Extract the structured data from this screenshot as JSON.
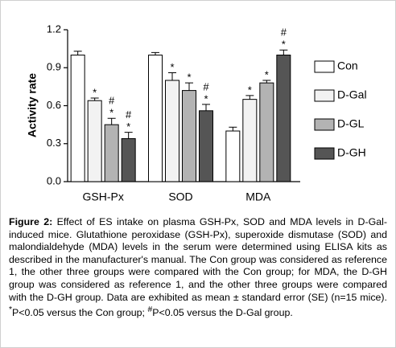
{
  "chart_data": {
    "type": "bar",
    "ylabel": "Activity rate",
    "categories": [
      "GSH-Px",
      "SOD",
      "MDA"
    ],
    "ylim": [
      0,
      1.2
    ],
    "yticks": [
      {
        "value": 0,
        "label": "0.0"
      },
      0.3,
      0.6,
      0.9,
      1.2
    ],
    "series": [
      {
        "name": "Con",
        "color": "#ffffff",
        "values": [
          1.0,
          1.0,
          0.4
        ],
        "errors": [
          0.03,
          0.02,
          0.03
        ],
        "stars": [
          null,
          null,
          null
        ],
        "hashes": [
          null,
          null,
          null
        ]
      },
      {
        "name": "D-Gal",
        "color": "#f2f2f2",
        "values": [
          0.64,
          0.8,
          0.65
        ],
        "errors": [
          0.02,
          0.06,
          0.03
        ],
        "stars": [
          "*",
          "*",
          "*"
        ],
        "hashes": [
          null,
          null,
          null
        ]
      },
      {
        "name": "D-GL",
        "color": "#b3b3b3",
        "values": [
          0.45,
          0.72,
          0.78
        ],
        "errors": [
          0.05,
          0.06,
          0.02
        ],
        "stars": [
          "*",
          "*",
          "*"
        ],
        "hashes": [
          "#",
          null,
          null
        ]
      },
      {
        "name": "D-GH",
        "color": "#555555",
        "values": [
          0.34,
          0.56,
          1.0
        ],
        "errors": [
          0.05,
          0.05,
          0.04
        ],
        "stars": [
          "*",
          "*",
          "*"
        ],
        "hashes": [
          "#",
          "#",
          "#"
        ]
      }
    ]
  },
  "caption": {
    "label": "Figure 2:",
    "text": " Effect of ES intake on plasma GSH-Px, SOD and MDA levels in D-Gal-induced mice. Glutathione peroxidase (GSH-Px), superoxide dismutase (SOD) and malondialdehyde (MDA) levels in the serum were determined using ELISA kits as described in the manufacturer's manual. The Con group was considered as reference 1, the other three groups were compared with the Con group; for MDA, the D-GH group was considered as reference 1, and the other three groups were compared with the D-GH group. Data are exhibited as mean ± standard error (SE) (n=15 mice). ",
    "sup1": "*",
    "text2": "P<0.05 versus the Con group; ",
    "sup2": "#",
    "text3": "P<0.05 versus the D-Gal group."
  }
}
